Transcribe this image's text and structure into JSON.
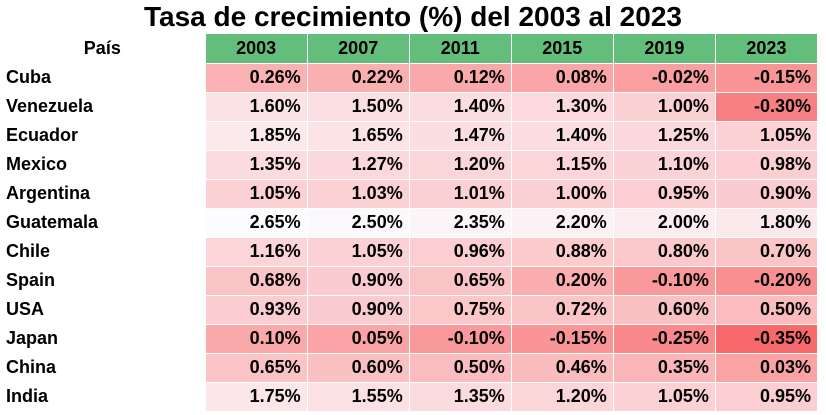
{
  "chart_data": {
    "type": "table",
    "title": "Tasa de crecimiento (%) del 2003 al 2023",
    "row_header": "País",
    "columns": [
      "2003",
      "2007",
      "2011",
      "2015",
      "2019",
      "2023"
    ],
    "header_color": "#63be7b",
    "scale_colors": {
      "low": "#f8696b",
      "high": "#fcfcff"
    },
    "rows": [
      {
        "country": "Cuba",
        "values": [
          0.26,
          0.22,
          0.12,
          0.08,
          -0.02,
          -0.15
        ],
        "labels": [
          "0.26%",
          "0.22%",
          "0.12%",
          "0.08%",
          "-0.02%",
          "-0.15%"
        ]
      },
      {
        "country": "Venezuela",
        "values": [
          1.6,
          1.5,
          1.4,
          1.3,
          1.0,
          -0.3
        ],
        "labels": [
          "1.60%",
          "1.50%",
          "1.40%",
          "1.30%",
          "1.00%",
          "-0.30%"
        ]
      },
      {
        "country": "Ecuador",
        "values": [
          1.85,
          1.65,
          1.47,
          1.4,
          1.25,
          1.05
        ],
        "labels": [
          "1.85%",
          "1.65%",
          "1.47%",
          "1.40%",
          "1.25%",
          "1.05%"
        ]
      },
      {
        "country": "Mexico",
        "values": [
          1.35,
          1.27,
          1.2,
          1.15,
          1.1,
          0.98
        ],
        "labels": [
          "1.35%",
          "1.27%",
          "1.20%",
          "1.15%",
          "1.10%",
          "0.98%"
        ]
      },
      {
        "country": "Argentina",
        "values": [
          1.05,
          1.03,
          1.01,
          1.0,
          0.95,
          0.9
        ],
        "labels": [
          "1.05%",
          "1.03%",
          "1.01%",
          "1.00%",
          "0.95%",
          "0.90%"
        ]
      },
      {
        "country": "Guatemala",
        "values": [
          2.65,
          2.5,
          2.35,
          2.2,
          2.0,
          1.8
        ],
        "labels": [
          "2.65%",
          "2.50%",
          "2.35%",
          "2.20%",
          "2.00%",
          "1.80%"
        ]
      },
      {
        "country": "Chile",
        "values": [
          1.16,
          1.05,
          0.96,
          0.88,
          0.8,
          0.7
        ],
        "labels": [
          "1.16%",
          "1.05%",
          "0.96%",
          "0.88%",
          "0.80%",
          "0.70%"
        ]
      },
      {
        "country": "Spain",
        "values": [
          0.68,
          0.9,
          0.65,
          0.2,
          -0.1,
          -0.2
        ],
        "labels": [
          "0.68%",
          "0.90%",
          "0.65%",
          "0.20%",
          "-0.10%",
          "-0.20%"
        ]
      },
      {
        "country": "USA",
        "values": [
          0.93,
          0.9,
          0.75,
          0.72,
          0.6,
          0.5
        ],
        "labels": [
          "0.93%",
          "0.90%",
          "0.75%",
          "0.72%",
          "0.60%",
          "0.50%"
        ]
      },
      {
        "country": "Japan",
        "values": [
          0.1,
          0.05,
          -0.1,
          -0.15,
          -0.25,
          -0.35
        ],
        "labels": [
          "0.10%",
          "0.05%",
          "-0.10%",
          "-0.15%",
          "-0.25%",
          "-0.35%"
        ]
      },
      {
        "country": "China",
        "values": [
          0.65,
          0.6,
          0.5,
          0.46,
          0.35,
          0.03
        ],
        "labels": [
          "0.65%",
          "0.60%",
          "0.50%",
          "0.46%",
          "0.35%",
          "0.03%"
        ]
      },
      {
        "country": "India",
        "values": [
          1.75,
          1.55,
          1.35,
          1.2,
          1.05,
          0.95
        ],
        "labels": [
          "1.75%",
          "1.55%",
          "1.35%",
          "1.20%",
          "1.05%",
          "0.95%"
        ]
      }
    ]
  }
}
